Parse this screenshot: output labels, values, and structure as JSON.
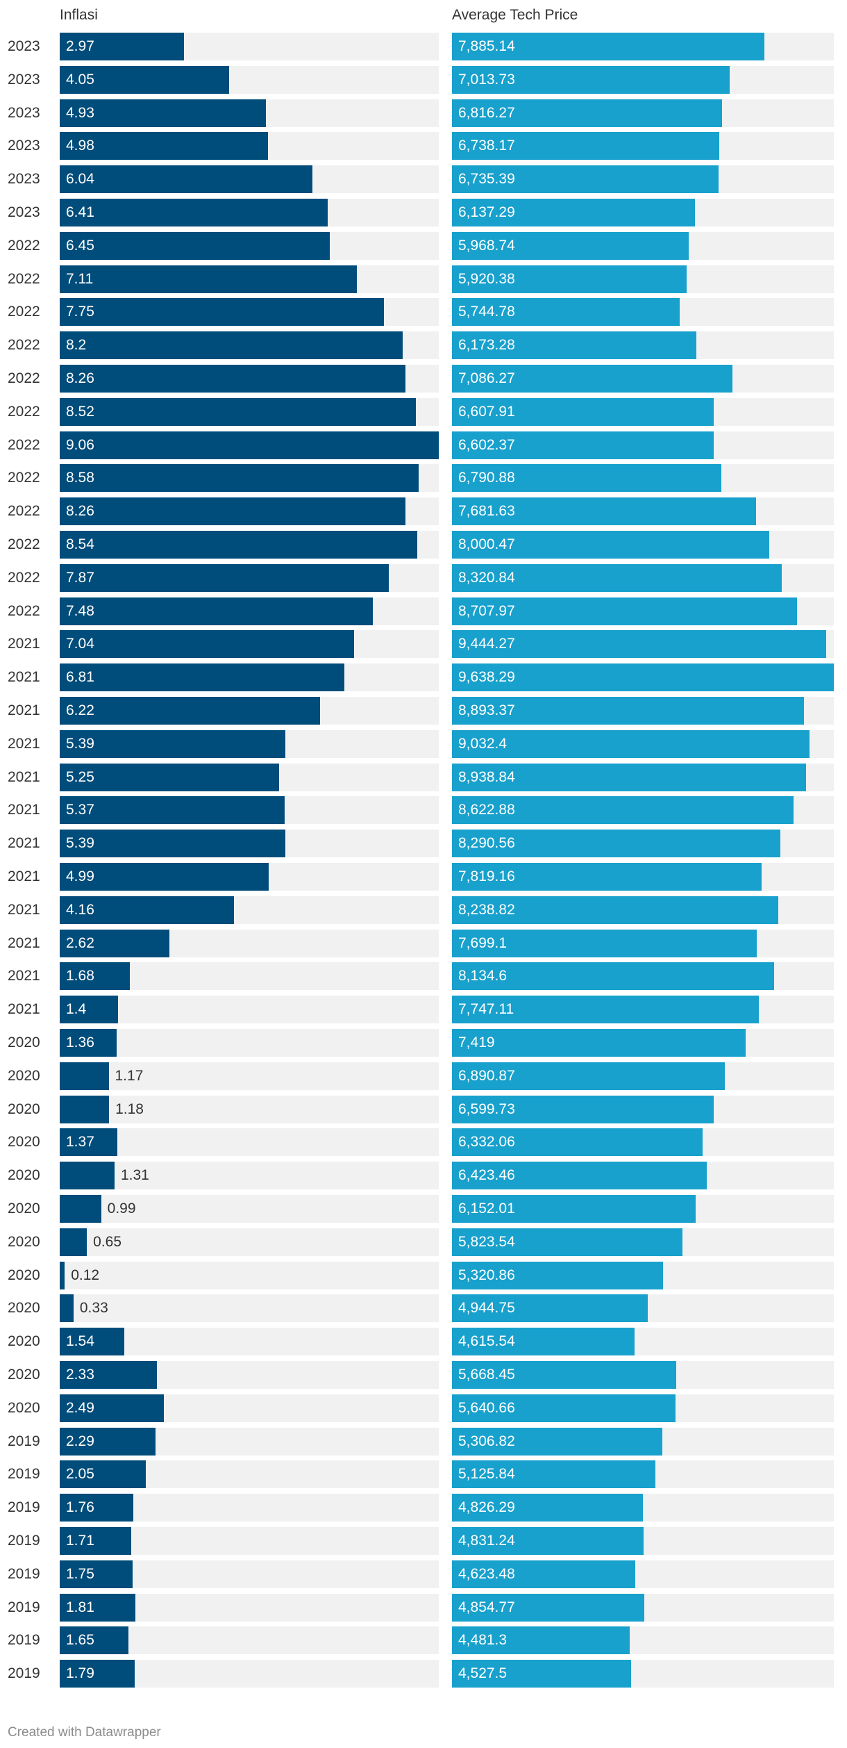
{
  "chart_data": {
    "type": "bar",
    "orientation": "horizontal",
    "categories": [
      "2023",
      "2023",
      "2023",
      "2023",
      "2023",
      "2023",
      "2022",
      "2022",
      "2022",
      "2022",
      "2022",
      "2022",
      "2022",
      "2022",
      "2022",
      "2022",
      "2022",
      "2022",
      "2021",
      "2021",
      "2021",
      "2021",
      "2021",
      "2021",
      "2021",
      "2021",
      "2021",
      "2021",
      "2021",
      "2021",
      "2020",
      "2020",
      "2020",
      "2020",
      "2020",
      "2020",
      "2020",
      "2020",
      "2020",
      "2020",
      "2020",
      "2020",
      "2019",
      "2019",
      "2019",
      "2019",
      "2019",
      "2019",
      "2019",
      "2019"
    ],
    "series": [
      {
        "name": "Inflasi",
        "color": "#004c7a",
        "xlim": [
          0,
          9.06
        ],
        "values": [
          2.97,
          4.05,
          4.93,
          4.98,
          6.04,
          6.41,
          6.45,
          7.11,
          7.75,
          8.2,
          8.26,
          8.52,
          9.06,
          8.58,
          8.26,
          8.54,
          7.87,
          7.48,
          7.04,
          6.81,
          6.22,
          5.39,
          5.25,
          5.37,
          5.39,
          4.99,
          4.16,
          2.62,
          1.68,
          1.4,
          1.36,
          1.17,
          1.18,
          1.37,
          1.31,
          0.99,
          0.65,
          0.12,
          0.33,
          1.54,
          2.33,
          2.49,
          2.29,
          2.05,
          1.76,
          1.71,
          1.75,
          1.81,
          1.65,
          1.79
        ],
        "labels": [
          "2.97",
          "4.05",
          "4.93",
          "4.98",
          "6.04",
          "6.41",
          "6.45",
          "7.11",
          "7.75",
          "8.2",
          "8.26",
          "8.52",
          "9.06",
          "8.58",
          "8.26",
          "8.54",
          "7.87",
          "7.48",
          "7.04",
          "6.81",
          "6.22",
          "5.39",
          "5.25",
          "5.37",
          "5.39",
          "4.99",
          "4.16",
          "2.62",
          "1.68",
          "1.4",
          "1.36",
          "1.17",
          "1.18",
          "1.37",
          "1.31",
          "0.99",
          "0.65",
          "0.12",
          "0.33",
          "1.54",
          "2.33",
          "2.49",
          "2.29",
          "2.05",
          "1.76",
          "1.71",
          "1.75",
          "1.81",
          "1.65",
          "1.79"
        ]
      },
      {
        "name": "Average Tech Price",
        "color": "#18a1cd",
        "xlim": [
          0,
          9638.29
        ],
        "values": [
          7885.14,
          7013.73,
          6816.27,
          6738.17,
          6735.39,
          6137.29,
          5968.74,
          5920.38,
          5744.78,
          6173.28,
          7086.27,
          6607.91,
          6602.37,
          6790.88,
          7681.63,
          8000.47,
          8320.84,
          8707.97,
          9444.27,
          9638.29,
          8893.37,
          9032.4,
          8938.84,
          8622.88,
          8290.56,
          7819.16,
          8238.82,
          7699.1,
          8134.6,
          7747.11,
          7419,
          6890.87,
          6599.73,
          6332.06,
          6423.46,
          6152.01,
          5823.54,
          5320.86,
          4944.75,
          4615.54,
          5668.45,
          5640.66,
          5306.82,
          5125.84,
          4826.29,
          4831.24,
          4623.48,
          4854.77,
          4481.3,
          4527.5
        ],
        "labels": [
          "7,885.14",
          "7,013.73",
          "6,816.27",
          "6,738.17",
          "6,735.39",
          "6,137.29",
          "5,968.74",
          "5,920.38",
          "5,744.78",
          "6,173.28",
          "7,086.27",
          "6,607.91",
          "6,602.37",
          "6,790.88",
          "7,681.63",
          "8,000.47",
          "8,320.84",
          "8,707.97",
          "9,444.27",
          "9,638.29",
          "8,893.37",
          "9,032.4",
          "8,938.84",
          "8,622.88",
          "8,290.56",
          "7,819.16",
          "8,238.82",
          "7,699.1",
          "8,134.6",
          "7,747.11",
          "7,419",
          "6,890.87",
          "6,599.73",
          "6,332.06",
          "6,423.46",
          "6,152.01",
          "5,823.54",
          "5,320.86",
          "4,944.75",
          "4,615.54",
          "5,668.45",
          "5,640.66",
          "5,306.82",
          "5,125.84",
          "4,826.29",
          "4,831.24",
          "4,623.48",
          "4,854.77",
          "4,481.3",
          "4,527.5"
        ]
      }
    ],
    "title": "",
    "xlabel": "",
    "ylabel": "",
    "grid": false,
    "legend": "none"
  },
  "footer": {
    "credit": "Created with Datawrapper"
  }
}
